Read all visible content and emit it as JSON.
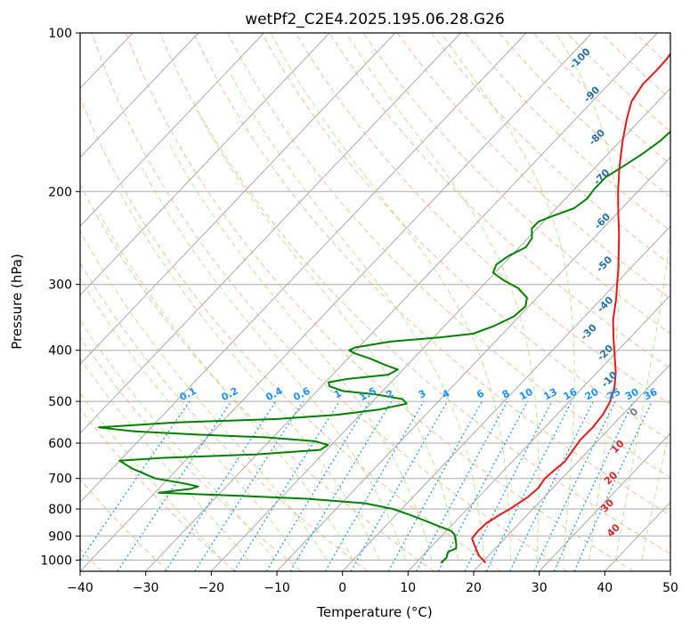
{
  "chart_data": {
    "type": "line",
    "subtype": "skew-t log-p diagram",
    "title": "wetPf2_C2E4.2025.195.06.28.G26",
    "xlabel": "Temperature (°C)",
    "ylabel": "Pressure (hPa)",
    "xlim": [
      -40,
      50
    ],
    "ylim": [
      1050,
      100
    ],
    "y_scale": "log",
    "grid": true,
    "x_ticks": [
      -40,
      -30,
      -20,
      -10,
      0,
      10,
      20,
      30,
      40,
      50
    ],
    "y_ticks": [
      1000,
      900,
      800,
      700,
      600,
      500,
      400,
      300,
      200,
      100
    ],
    "series": [
      {
        "role": "temperature",
        "color": "#e31a1c",
        "points": [
          {
            "p": 1012,
            "t": 20.6
          },
          {
            "p": 980,
            "t": 18.5
          },
          {
            "p": 940,
            "t": 16.5
          },
          {
            "p": 910,
            "t": 15.0
          },
          {
            "p": 880,
            "t": 14.8
          },
          {
            "p": 850,
            "t": 15.0
          },
          {
            "p": 820,
            "t": 15.8
          },
          {
            "p": 800,
            "t": 16.5
          },
          {
            "p": 760,
            "t": 17.5
          },
          {
            "p": 730,
            "t": 17.8
          },
          {
            "p": 700,
            "t": 17.4
          },
          {
            "p": 680,
            "t": 17.6
          },
          {
            "p": 650,
            "t": 18.0
          },
          {
            "p": 620,
            "t": 17.6
          },
          {
            "p": 590,
            "t": 17.2
          },
          {
            "p": 560,
            "t": 17.3
          },
          {
            "p": 530,
            "t": 17.0
          },
          {
            "p": 500,
            "t": 16.2
          },
          {
            "p": 470,
            "t": 14.8
          },
          {
            "p": 440,
            "t": 12.8
          },
          {
            "p": 410,
            "t": 10.3
          },
          {
            "p": 380,
            "t": 7.6
          },
          {
            "p": 350,
            "t": 4.8
          },
          {
            "p": 320,
            "t": 2.3
          },
          {
            "p": 300,
            "t": 0.3
          },
          {
            "p": 280,
            "t": -1.8
          },
          {
            "p": 260,
            "t": -4.2
          },
          {
            "p": 240,
            "t": -6.8
          },
          {
            "p": 220,
            "t": -9.8
          },
          {
            "p": 200,
            "t": -13.0
          },
          {
            "p": 180,
            "t": -16.3
          },
          {
            "p": 160,
            "t": -19.7
          },
          {
            "p": 145,
            "t": -22.3
          },
          {
            "p": 135,
            "t": -24.0
          },
          {
            "p": 125,
            "t": -24.8
          },
          {
            "p": 118,
            "t": -24.7
          },
          {
            "p": 112,
            "t": -24.8
          },
          {
            "p": 106,
            "t": -25.3
          },
          {
            "p": 100,
            "t": -25.8
          }
        ]
      },
      {
        "role": "dewpoint",
        "color": "#008000",
        "points": [
          {
            "p": 1012,
            "t": 13.8
          },
          {
            "p": 990,
            "t": 13.9
          },
          {
            "p": 965,
            "t": 13.3
          },
          {
            "p": 950,
            "t": 14.0
          },
          {
            "p": 935,
            "t": 13.5
          },
          {
            "p": 915,
            "t": 12.7
          },
          {
            "p": 895,
            "t": 11.8
          },
          {
            "p": 880,
            "t": 10.7
          },
          {
            "p": 860,
            "t": 7.8
          },
          {
            "p": 840,
            "t": 5.0
          },
          {
            "p": 820,
            "t": 2.0
          },
          {
            "p": 800,
            "t": -1.3
          },
          {
            "p": 780,
            "t": -6.5
          },
          {
            "p": 765,
            "t": -16.0
          },
          {
            "p": 755,
            "t": -27.0
          },
          {
            "p": 745,
            "t": -39.4
          },
          {
            "p": 732,
            "t": -35.0
          },
          {
            "p": 725,
            "t": -34.3
          },
          {
            "p": 715,
            "t": -37.0
          },
          {
            "p": 700,
            "t": -42.0
          },
          {
            "p": 670,
            "t": -47.0
          },
          {
            "p": 648,
            "t": -50.0
          },
          {
            "p": 640,
            "t": -44.0
          },
          {
            "p": 630,
            "t": -30.0
          },
          {
            "p": 618,
            "t": -21.0
          },
          {
            "p": 605,
            "t": -20.5
          },
          {
            "p": 595,
            "t": -23.0
          },
          {
            "p": 585,
            "t": -31.0
          },
          {
            "p": 578,
            "t": -42.0
          },
          {
            "p": 570,
            "t": -52.0
          },
          {
            "p": 560,
            "t": -58.0
          },
          {
            "p": 548,
            "t": -47.0
          },
          {
            "p": 540,
            "t": -32.0
          },
          {
            "p": 530,
            "t": -23.5
          },
          {
            "p": 518,
            "t": -17.8
          },
          {
            "p": 505,
            "t": -14.5
          },
          {
            "p": 495,
            "t": -15.8
          },
          {
            "p": 485,
            "t": -20.5
          },
          {
            "p": 478,
            "t": -26.0
          },
          {
            "p": 468,
            "t": -28.8
          },
          {
            "p": 460,
            "t": -29.5
          },
          {
            "p": 453,
            "t": -27.0
          },
          {
            "p": 445,
            "t": -21.5
          },
          {
            "p": 435,
            "t": -20.8
          },
          {
            "p": 425,
            "t": -23.8
          },
          {
            "p": 415,
            "t": -26.5
          },
          {
            "p": 405,
            "t": -29.8
          },
          {
            "p": 400,
            "t": -31.0
          },
          {
            "p": 395,
            "t": -30.5
          },
          {
            "p": 385,
            "t": -26.0
          },
          {
            "p": 378,
            "t": -19.0
          },
          {
            "p": 372,
            "t": -14.5
          },
          {
            "p": 360,
            "t": -12.5
          },
          {
            "p": 345,
            "t": -10.8
          },
          {
            "p": 330,
            "t": -10.5
          },
          {
            "p": 318,
            "t": -11.5
          },
          {
            "p": 305,
            "t": -14.2
          },
          {
            "p": 295,
            "t": -17.5
          },
          {
            "p": 285,
            "t": -20.3
          },
          {
            "p": 275,
            "t": -21.0
          },
          {
            "p": 265,
            "t": -20.4
          },
          {
            "p": 255,
            "t": -19.0
          },
          {
            "p": 245,
            "t": -19.4
          },
          {
            "p": 235,
            "t": -20.8
          },
          {
            "p": 228,
            "t": -20.8
          },
          {
            "p": 222,
            "t": -19.3
          },
          {
            "p": 215,
            "t": -17.3
          },
          {
            "p": 206,
            "t": -16.7
          },
          {
            "p": 198,
            "t": -17.0
          },
          {
            "p": 188,
            "t": -17.0
          },
          {
            "p": 180,
            "t": -16.0
          },
          {
            "p": 170,
            "t": -14.8
          },
          {
            "p": 160,
            "t": -13.9
          },
          {
            "p": 150,
            "t": -13.6
          },
          {
            "p": 140,
            "t": -13.6
          },
          {
            "p": 130,
            "t": -14.0
          },
          {
            "p": 122,
            "t": -15.0
          },
          {
            "p": 116,
            "t": -16.7
          },
          {
            "p": 111,
            "t": -17.0
          },
          {
            "p": 105,
            "t": -16.2
          },
          {
            "p": 100,
            "t": -15.0
          }
        ]
      }
    ],
    "annotations": {
      "isobar_grid_hpa": [
        1000,
        900,
        800,
        700,
        600,
        500,
        400,
        300,
        200
      ],
      "mixing_ratio_labels": [
        {
          "text": "0.1",
          "w": 0.1
        },
        {
          "text": "0.2",
          "w": 0.2
        },
        {
          "text": "0.4",
          "w": 0.4
        },
        {
          "text": "0.6",
          "w": 0.6
        },
        {
          "text": "1",
          "w": 1
        },
        {
          "text": "1.5",
          "w": 1.5
        },
        {
          "text": "2",
          "w": 2
        },
        {
          "text": "3",
          "w": 3
        },
        {
          "text": "4",
          "w": 4
        },
        {
          "text": "6",
          "w": 6
        },
        {
          "text": "8",
          "w": 8
        },
        {
          "text": "10",
          "w": 10
        },
        {
          "text": "13",
          "w": 13
        },
        {
          "text": "16",
          "w": 16
        },
        {
          "text": "20",
          "w": 20
        },
        {
          "text": "25",
          "w": 25
        },
        {
          "text": "30",
          "w": 30
        },
        {
          "text": "36",
          "w": 36
        }
      ],
      "dry_adiabat_labels": [
        {
          "text": "-100",
          "p": 112,
          "t": -38.0
        },
        {
          "text": "-90",
          "p": 131,
          "t": -31.0
        },
        {
          "text": "-80",
          "p": 158,
          "t": -24.0
        },
        {
          "text": "-70",
          "p": 188,
          "t": -17.5
        },
        {
          "text": "-60",
          "p": 228,
          "t": -11.0
        },
        {
          "text": "-50",
          "p": 275,
          "t": -4.5
        },
        {
          "text": "-40",
          "p": 328,
          "t": 1.5
        },
        {
          "text": "-30",
          "p": 370,
          "t": 3.0
        },
        {
          "text": "-20",
          "p": 405,
          "t": 8.5
        },
        {
          "text": "-10",
          "p": 455,
          "t": 13.0
        },
        {
          "text": "0",
          "p": 525,
          "t": 21.5
        },
        {
          "text": "10",
          "p": 610,
          "t": 24.0
        },
        {
          "text": "20",
          "p": 700,
          "t": 27.5
        },
        {
          "text": "30",
          "p": 790,
          "t": 31.0
        },
        {
          "text": "40",
          "p": 880,
          "t": 35.5
        }
      ]
    },
    "colors": {
      "temperature": "#e31a1c",
      "dewpoint": "#008000",
      "dry_adiabat": "#f4a582",
      "moist_adiabat": "#a6d96a",
      "mixing_ratio": "#1e90ff",
      "grid": "#aaaaaa"
    }
  }
}
